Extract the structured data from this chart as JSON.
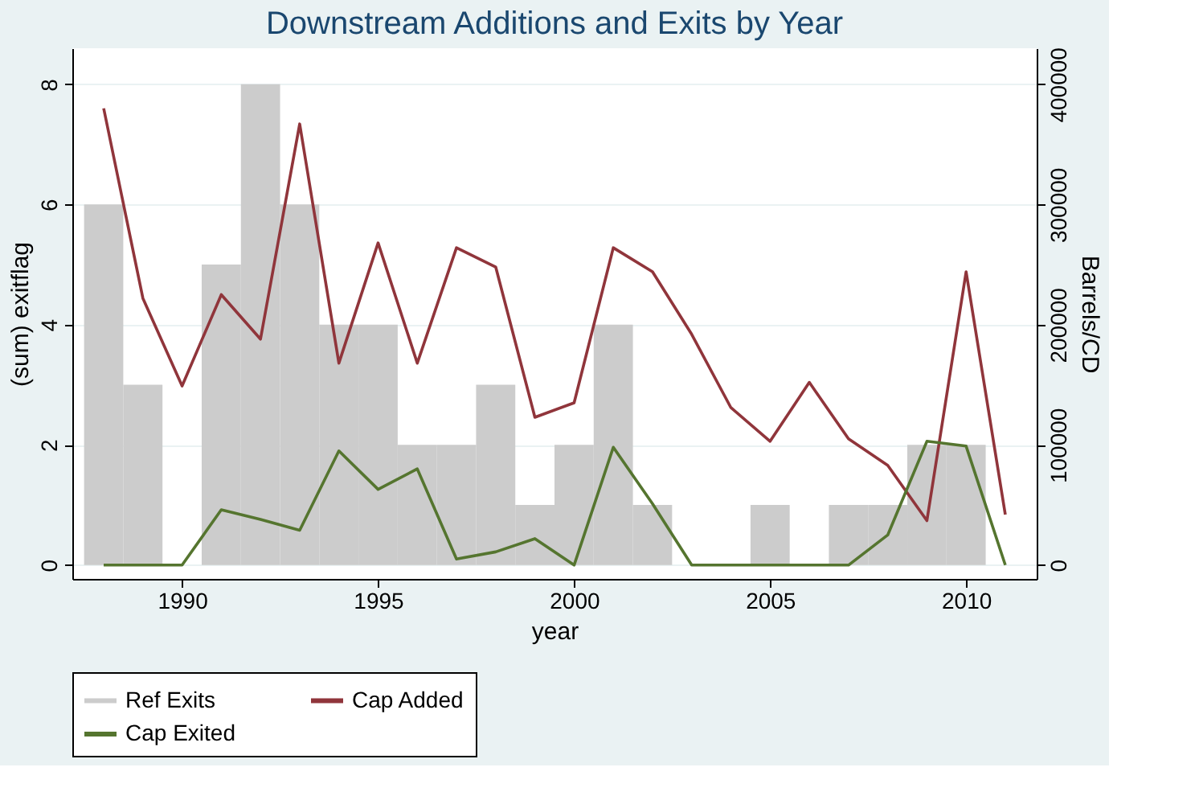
{
  "chart_data": {
    "type": "bar",
    "title": "Downstream Additions and Exits by Year",
    "xlabel": "year",
    "ylabel": "(sum) exitflag",
    "y2label": "Barrels/CD",
    "x": [
      1988,
      1989,
      1990,
      1991,
      1992,
      1993,
      1994,
      1995,
      1996,
      1997,
      1998,
      1999,
      2000,
      2001,
      2002,
      2003,
      2004,
      2005,
      2006,
      2007,
      2008,
      2009,
      2010,
      2011
    ],
    "series": [
      {
        "name": "Ref Exits",
        "color": "#cccccc",
        "values": [
          6,
          3,
          0,
          5,
          8,
          6,
          4,
          4,
          2,
          2,
          3,
          1,
          2,
          4,
          1,
          0,
          0,
          1,
          0,
          1,
          1,
          2,
          2,
          null
        ]
      },
      {
        "name": "Cap Added",
        "type": "line",
        "axis": "y2",
        "color": "#90353b",
        "values": [
          380000,
          222000,
          149000,
          225000,
          188000,
          367000,
          168000,
          268000,
          168000,
          264000,
          248000,
          123000,
          135000,
          264000,
          244000,
          192000,
          131000,
          103000,
          152000,
          105000,
          83000,
          37000,
          244000,
          42000
        ]
      },
      {
        "name": "Cap Exited",
        "type": "line",
        "axis": "y2",
        "color": "#55752f",
        "values": [
          0,
          0,
          0,
          46000,
          38000,
          29000,
          95000,
          63000,
          80000,
          5000,
          11000,
          22000,
          0,
          98000,
          51000,
          0,
          0,
          0,
          0,
          0,
          25000,
          103000,
          99000,
          0
        ]
      }
    ],
    "xlim": [
      1987.2,
      2011.8
    ],
    "xticks": [
      1990,
      1995,
      2000,
      2005,
      2010
    ],
    "ylim": [
      -0.23,
      8.6
    ],
    "yticks": [
      0,
      2,
      4,
      6,
      8
    ],
    "y2lim": [
      -11500,
      430000
    ],
    "y2ticks": [
      0,
      100000,
      200000,
      300000,
      400000
    ],
    "grid": "y",
    "legend": "bottom",
    "line_style": "solid",
    "marker": "none"
  }
}
